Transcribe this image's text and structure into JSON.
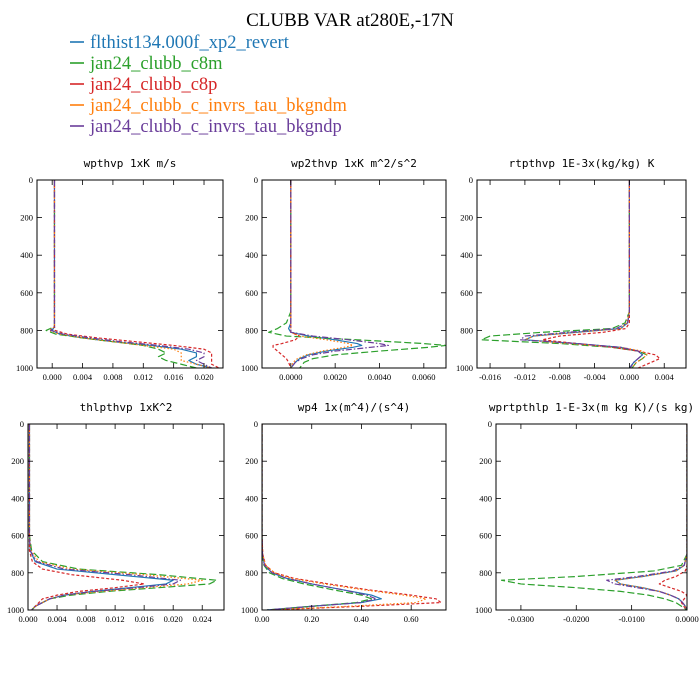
{
  "figure": {
    "title": "CLUBB VAR at280E,-17N"
  },
  "legend": [
    {
      "label": "flthist134.000f_xp2_revert",
      "color": "#1f77b4",
      "dash": "solid"
    },
    {
      "label": "jan24_clubb_c8m",
      "color": "#2ca02c",
      "dash": "long-dash"
    },
    {
      "label": "jan24_clubb_c8p",
      "color": "#d62728",
      "dash": "short-dash"
    },
    {
      "label": "jan24_clubb_c_invrs_tau_bkgndm",
      "color": "#ff7f0e",
      "dash": "dot"
    },
    {
      "label": "jan24_clubb_c_invrs_tau_bkgndp",
      "color": "#6a3d9a",
      "dash": "dash-dot"
    }
  ],
  "chart_data": [
    {
      "type": "line",
      "title": "wpthvp   1xK m/s",
      "xlim": [
        -0.002,
        0.0225
      ],
      "ylim": [
        1000,
        0
      ],
      "xticks": [
        0.0,
        0.004,
        0.008,
        0.012,
        0.016,
        0.02
      ],
      "xticklabels": [
        "0.000",
        "0.004",
        "0.008",
        "0.012",
        "0.016",
        "0.020"
      ],
      "yticks": [
        0,
        200,
        400,
        600,
        800,
        1000
      ],
      "yticklabels": [
        "0",
        "200",
        "400",
        "600",
        "800",
        "1000"
      ],
      "y": [
        0,
        100,
        200,
        300,
        400,
        500,
        600,
        700,
        780,
        800,
        820,
        840,
        860,
        880,
        900,
        920,
        940,
        960,
        980,
        1000
      ],
      "series": [
        {
          "name": "flthist134.000f_xp2_revert",
          "values": [
            0.0003,
            0.0003,
            0.0003,
            0.0003,
            0.0003,
            0.0003,
            0.0003,
            0.0003,
            0.0003,
            0.0,
            0.001,
            0.004,
            0.008,
            0.013,
            0.017,
            0.019,
            0.019,
            0.018,
            0.019,
            0.021
          ]
        },
        {
          "name": "jan24_clubb_c8m",
          "values": [
            0.0003,
            0.0003,
            0.0003,
            0.0003,
            0.0003,
            0.0003,
            0.0003,
            0.0003,
            0.0003,
            -0.0008,
            0.0005,
            0.004,
            0.008,
            0.012,
            0.014,
            0.015,
            0.014,
            0.015,
            0.017,
            0.019
          ]
        },
        {
          "name": "jan24_clubb_c8p",
          "values": [
            0.0003,
            0.0003,
            0.0003,
            0.0003,
            0.0003,
            0.0003,
            0.0003,
            0.0003,
            0.0003,
            0.0004,
            0.002,
            0.006,
            0.011,
            0.016,
            0.02,
            0.021,
            0.021,
            0.021,
            0.021,
            0.022
          ]
        },
        {
          "name": "jan24_clubb_c_invrs_tau_bkgndm",
          "values": [
            0.0003,
            0.0003,
            0.0003,
            0.0003,
            0.0003,
            0.0003,
            0.0003,
            0.0003,
            0.0003,
            -0.0004,
            0.001,
            0.004,
            0.008,
            0.012,
            0.016,
            0.017,
            0.017,
            0.017,
            0.019,
            0.021
          ]
        },
        {
          "name": "jan24_clubb_c_invrs_tau_bkgndp",
          "values": [
            0.0003,
            0.0003,
            0.0003,
            0.0003,
            0.0003,
            0.0003,
            0.0003,
            0.0003,
            0.0003,
            -0.0002,
            0.0015,
            0.005,
            0.009,
            0.014,
            0.018,
            0.02,
            0.02,
            0.019,
            0.02,
            0.021
          ]
        }
      ]
    },
    {
      "type": "line",
      "title": "wp2thvp   1xK m^2/s^2",
      "xlim": [
        -0.0013,
        0.007
      ],
      "ylim": [
        1000,
        0
      ],
      "xticks": [
        0.0,
        0.002,
        0.004,
        0.006
      ],
      "xticklabels": [
        "0.0000",
        "0.0020",
        "0.0040",
        "0.0060"
      ],
      "yticks": [
        0,
        200,
        400,
        600,
        800,
        1000
      ],
      "yticklabels": [
        "0",
        "200",
        "400",
        "600",
        "800",
        "1000"
      ],
      "y": [
        0,
        200,
        400,
        600,
        700,
        760,
        790,
        810,
        830,
        850,
        870,
        880,
        890,
        910,
        930,
        950,
        970,
        1000
      ],
      "series": [
        {
          "name": "flthist134.000f_xp2_revert",
          "values": [
            0.0,
            0.0,
            0.0,
            0.0,
            0.0,
            0.0,
            -0.0001,
            0.0,
            0.0008,
            0.002,
            0.003,
            0.0032,
            0.0028,
            0.0016,
            0.0008,
            0.0004,
            0.0002,
            0.0
          ]
        },
        {
          "name": "jan24_clubb_c8m",
          "values": [
            0.0,
            0.0,
            0.0,
            0.0,
            0.0,
            -0.0002,
            -0.0006,
            -0.001,
            -0.0002,
            0.003,
            0.006,
            0.007,
            0.0062,
            0.004,
            0.002,
            0.001,
            0.0006,
            0.0004
          ]
        },
        {
          "name": "jan24_clubb_c8p",
          "values": [
            0.0,
            0.0,
            0.0,
            0.0,
            0.0,
            0.0,
            0.0,
            0.0,
            0.0004,
            0.0002,
            -0.0004,
            -0.0008,
            -0.0008,
            -0.0006,
            -0.0004,
            -0.0002,
            -0.0001,
            0.0
          ]
        },
        {
          "name": "jan24_clubb_c_invrs_tau_bkgndm",
          "values": [
            0.0,
            0.0,
            0.0,
            0.0,
            0.0,
            0.0,
            0.0,
            0.0,
            0.0004,
            0.0016,
            0.0026,
            0.0028,
            0.0024,
            0.0014,
            0.0007,
            0.0003,
            0.0001,
            0.0
          ]
        },
        {
          "name": "jan24_clubb_c_invrs_tau_bkgndp",
          "values": [
            0.0,
            0.0,
            0.0,
            0.0,
            0.0,
            0.0,
            0.0,
            0.0,
            0.001,
            0.0026,
            0.004,
            0.0044,
            0.0036,
            0.002,
            0.001,
            0.0005,
            0.0002,
            0.0
          ]
        }
      ]
    },
    {
      "type": "line",
      "title": "rtpthvp   1E-3x(kg/kg) K",
      "xlim": [
        -0.0175,
        0.0065
      ],
      "ylim": [
        1000,
        0
      ],
      "xticks": [
        -0.016,
        -0.012,
        -0.008,
        -0.004,
        0.0,
        0.004
      ],
      "xticklabels": [
        "-0.016",
        "-0.012",
        "-0.008",
        "-0.004",
        "0.000",
        "0.004"
      ],
      "yticks": [
        0,
        200,
        400,
        600,
        800,
        1000
      ],
      "yticklabels": [
        "0",
        "200",
        "400",
        "600",
        "800",
        "1000"
      ],
      "y": [
        0,
        200,
        400,
        600,
        700,
        760,
        790,
        810,
        830,
        850,
        870,
        890,
        910,
        930,
        950,
        970,
        1000
      ],
      "series": [
        {
          "name": "flthist134.000f_xp2_revert",
          "values": [
            0.0,
            0.0,
            0.0,
            0.0,
            0.0,
            -0.0002,
            -0.001,
            -0.006,
            -0.011,
            -0.012,
            -0.006,
            -0.001,
            0.001,
            0.0015,
            0.001,
            0.0005,
            0.0
          ]
        },
        {
          "name": "jan24_clubb_c8m",
          "values": [
            0.0,
            0.0,
            0.0,
            0.0,
            0.0,
            -0.0005,
            -0.002,
            -0.01,
            -0.016,
            -0.017,
            -0.008,
            -0.002,
            0.001,
            0.002,
            0.0015,
            0.0008,
            0.0003
          ]
        },
        {
          "name": "jan24_clubb_c8p",
          "values": [
            0.0,
            0.0,
            0.0,
            0.0,
            0.0,
            0.0,
            -0.0004,
            -0.003,
            -0.008,
            -0.01,
            -0.006,
            -0.002,
            0.001,
            0.003,
            0.0035,
            0.0025,
            0.001
          ]
        },
        {
          "name": "jan24_clubb_c_invrs_tau_bkgndm",
          "values": [
            0.0,
            0.0,
            0.0,
            0.0,
            0.0,
            -0.0003,
            -0.001,
            -0.006,
            -0.011,
            -0.012,
            -0.007,
            -0.001,
            0.0015,
            0.002,
            0.0015,
            0.0008,
            0.0003
          ]
        },
        {
          "name": "jan24_clubb_c_invrs_tau_bkgndp",
          "values": [
            0.0,
            0.0,
            0.0,
            0.0,
            0.0,
            -0.0002,
            -0.0015,
            -0.007,
            -0.012,
            -0.0125,
            -0.006,
            -0.001,
            0.001,
            0.0015,
            0.001,
            0.0005,
            0.0001
          ]
        }
      ]
    },
    {
      "type": "line",
      "title": "thlpthvp   1xK^2",
      "xlim": [
        0.0,
        0.027
      ],
      "ylim": [
        1000,
        0
      ],
      "xticks": [
        0.0,
        0.004,
        0.008,
        0.012,
        0.016,
        0.02,
        0.024
      ],
      "xticklabels": [
        "0.000",
        "0.004",
        "0.008",
        "0.012",
        "0.016",
        "0.020",
        "0.024"
      ],
      "yticks": [
        0,
        200,
        400,
        600,
        800,
        1000
      ],
      "yticklabels": [
        "0",
        "200",
        "400",
        "600",
        "800",
        "1000"
      ],
      "y": [
        0,
        200,
        400,
        600,
        680,
        740,
        780,
        810,
        840,
        860,
        880,
        900,
        920,
        940,
        960,
        980,
        1000
      ],
      "series": [
        {
          "name": "flthist134.000f_xp2_revert",
          "values": [
            0.0002,
            0.0002,
            0.0002,
            0.0002,
            0.0003,
            0.001,
            0.004,
            0.012,
            0.02,
            0.019,
            0.014,
            0.009,
            0.005,
            0.003,
            0.002,
            0.001,
            0.0005
          ]
        },
        {
          "name": "jan24_clubb_c8m",
          "values": [
            0.0002,
            0.0002,
            0.0002,
            0.0002,
            0.0005,
            0.002,
            0.007,
            0.018,
            0.026,
            0.025,
            0.018,
            0.011,
            0.006,
            0.003,
            0.002,
            0.001,
            0.0005
          ]
        },
        {
          "name": "jan24_clubb_c8p",
          "values": [
            0.0002,
            0.0002,
            0.0002,
            0.0002,
            0.0002,
            0.0006,
            0.002,
            0.006,
            0.013,
            0.016,
            0.012,
            0.007,
            0.004,
            0.002,
            0.0015,
            0.001,
            0.0005
          ]
        },
        {
          "name": "jan24_clubb_c_invrs_tau_bkgndm",
          "values": [
            0.0002,
            0.0002,
            0.0002,
            0.0002,
            0.0004,
            0.0015,
            0.006,
            0.016,
            0.024,
            0.022,
            0.016,
            0.01,
            0.005,
            0.003,
            0.002,
            0.001,
            0.0005
          ]
        },
        {
          "name": "jan24_clubb_c_invrs_tau_bkgndp",
          "values": [
            0.0002,
            0.0002,
            0.0002,
            0.0002,
            0.0003,
            0.0012,
            0.005,
            0.014,
            0.021,
            0.02,
            0.015,
            0.009,
            0.005,
            0.003,
            0.002,
            0.001,
            0.0005
          ]
        }
      ]
    },
    {
      "type": "line",
      "title": "wp4   1x(m^4)/(s^4)",
      "xlim": [
        0.0,
        0.74
      ],
      "ylim": [
        1000,
        0
      ],
      "xticks": [
        0.0,
        0.2,
        0.4,
        0.6
      ],
      "xticklabels": [
        "0.00",
        "0.20",
        "0.40",
        "0.60"
      ],
      "yticks": [
        0,
        200,
        400,
        600,
        800,
        1000
      ],
      "yticklabels": [
        "0",
        "200",
        "400",
        "600",
        "800",
        "1000"
      ],
      "y": [
        0,
        200,
        400,
        600,
        700,
        760,
        800,
        830,
        860,
        890,
        920,
        940,
        960,
        980,
        1000
      ],
      "series": [
        {
          "name": "flthist134.000f_xp2_revert",
          "values": [
            0.0,
            0.0,
            0.0,
            0.0,
            0.002,
            0.01,
            0.04,
            0.1,
            0.2,
            0.32,
            0.44,
            0.48,
            0.4,
            0.2,
            0.02
          ]
        },
        {
          "name": "jan24_clubb_c8m",
          "values": [
            0.0,
            0.0,
            0.0,
            0.0,
            0.001,
            0.008,
            0.03,
            0.08,
            0.17,
            0.28,
            0.4,
            0.44,
            0.38,
            0.2,
            0.02
          ]
        },
        {
          "name": "jan24_clubb_c8p",
          "values": [
            0.0,
            0.0,
            0.0,
            0.0,
            0.003,
            0.015,
            0.05,
            0.13,
            0.27,
            0.42,
            0.6,
            0.7,
            0.72,
            0.4,
            0.03
          ]
        },
        {
          "name": "jan24_clubb_c_invrs_tau_bkgndm",
          "values": [
            0.0,
            0.0,
            0.0,
            0.0,
            0.003,
            0.014,
            0.05,
            0.12,
            0.25,
            0.4,
            0.57,
            0.66,
            0.62,
            0.35,
            0.03
          ]
        },
        {
          "name": "jan24_clubb_c_invrs_tau_bkgndp",
          "values": [
            0.0,
            0.0,
            0.0,
            0.0,
            0.002,
            0.01,
            0.04,
            0.1,
            0.2,
            0.32,
            0.42,
            0.46,
            0.4,
            0.2,
            0.02
          ]
        }
      ]
    },
    {
      "type": "line",
      "title": "wprtpthlp   1-E-3x(m kg K)/(s kg)",
      "xlim": [
        -0.0345,
        0.0
      ],
      "ylim": [
        1000,
        0
      ],
      "xticks": [
        -0.03,
        -0.02,
        -0.01,
        0.0
      ],
      "xticklabels": [
        "-0.0300",
        "-0.0200",
        "-0.0100",
        "0.0000"
      ],
      "yticks": [
        0,
        200,
        400,
        600,
        800,
        1000
      ],
      "yticklabels": [
        "0",
        "200",
        "400",
        "600",
        "800",
        "1000"
      ],
      "y": [
        0,
        200,
        400,
        600,
        700,
        760,
        790,
        820,
        840,
        860,
        880,
        900,
        920,
        940,
        960,
        980,
        1000
      ],
      "series": [
        {
          "name": "flthist134.000f_xp2_revert",
          "values": [
            0.0,
            0.0,
            0.0,
            0.0,
            0.0,
            -0.0005,
            -0.002,
            -0.008,
            -0.013,
            -0.012,
            -0.008,
            -0.005,
            -0.003,
            -0.0015,
            -0.0008,
            -0.0003,
            0.0
          ]
        },
        {
          "name": "jan24_clubb_c8m",
          "values": [
            0.0,
            0.0,
            0.0,
            0.0,
            0.0,
            -0.001,
            -0.006,
            -0.02,
            -0.0335,
            -0.03,
            -0.02,
            -0.012,
            -0.007,
            -0.004,
            -0.002,
            -0.001,
            0.0
          ]
        },
        {
          "name": "jan24_clubb_c8p",
          "values": [
            0.0,
            0.0,
            0.0,
            0.0,
            0.0,
            0.0,
            -0.0003,
            -0.002,
            -0.004,
            -0.005,
            -0.003,
            -0.001,
            0.0,
            -0.0005,
            -0.001,
            -0.0006,
            0.0
          ]
        },
        {
          "name": "jan24_clubb_c_invrs_tau_bkgndm",
          "values": [
            0.0,
            0.0,
            0.0,
            0.0,
            0.0,
            -0.0005,
            -0.002,
            -0.008,
            -0.013,
            -0.012,
            -0.008,
            -0.005,
            -0.003,
            -0.0015,
            -0.0008,
            -0.0003,
            0.0
          ]
        },
        {
          "name": "jan24_clubb_c_invrs_tau_bkgndp",
          "values": [
            0.0,
            0.0,
            0.0,
            0.0,
            0.0,
            -0.0005,
            -0.0025,
            -0.009,
            -0.0145,
            -0.013,
            -0.009,
            -0.005,
            -0.003,
            -0.0015,
            -0.0008,
            -0.0003,
            0.0
          ]
        }
      ]
    }
  ]
}
